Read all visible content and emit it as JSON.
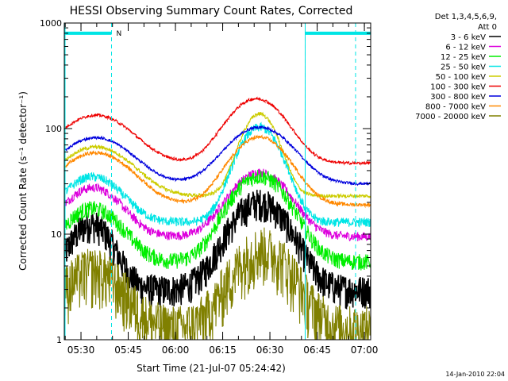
{
  "chart_data": {
    "type": "line",
    "title": "HESSI Observing Summary Count Rates, Corrected",
    "xlabel": "Start Time (21-Jul-07 05:24:42)",
    "ylabel": "Corrected Count Rate (s⁻¹ detector⁻¹)",
    "yscale": "log",
    "ylim": [
      1,
      1000
    ],
    "xlim_min": [
      0,
      97.3
    ],
    "x_unit": "minutes after 05:24:42",
    "x_ticks": [
      {
        "m": 5.3,
        "label": "05:30"
      },
      {
        "m": 20.3,
        "label": "05:45"
      },
      {
        "m": 35.3,
        "label": "06:00"
      },
      {
        "m": 50.3,
        "label": "06:15"
      },
      {
        "m": 65.3,
        "label": "06:30"
      },
      {
        "m": 80.3,
        "label": "06:45"
      },
      {
        "m": 95.3,
        "label": "07:00"
      }
    ],
    "y_ticks": [
      {
        "v": 1,
        "label": "1"
      },
      {
        "v": 10,
        "label": "10"
      },
      {
        "v": 100,
        "label": "100"
      },
      {
        "v": 1000,
        "label": "1000"
      }
    ],
    "legend": {
      "header1": "Det 1,3,4,5,6,9,",
      "header2": "Att 0",
      "placement": "right"
    },
    "night_band": {
      "label": "N",
      "start_min": 15.0,
      "end_min": 76.5,
      "level": 800
    },
    "markers_dashed_min": [
      15.0,
      76.5,
      92.5
    ],
    "series": [
      {
        "name": "3 - 6 keV",
        "color": "#000000",
        "base": 3.0,
        "f1": 9.5,
        "c1": 8.5,
        "w1": 6,
        "f2": 17,
        "c2": 62,
        "w2": 8,
        "noise": 0.35
      },
      {
        "name": "6 - 12 keV",
        "color": "#dd00dd",
        "base": 9.5,
        "f1": 18,
        "c1": 9,
        "w1": 8,
        "f2": 29,
        "c2": 62,
        "w2": 8,
        "noise": 0.1
      },
      {
        "name": "12 - 25 keV",
        "color": "#00ee00",
        "base": 5.5,
        "f1": 12,
        "c1": 9,
        "w1": 8,
        "f2": 30,
        "c2": 62,
        "w2": 8,
        "noise": 0.18
      },
      {
        "name": "25 - 50 keV",
        "color": "#00e5e5",
        "base": 13,
        "f1": 22,
        "c1": 9,
        "w1": 8,
        "f2": 90,
        "c2": 62,
        "w2": 6,
        "noise": 0.1
      },
      {
        "name": "50 - 100 keV",
        "color": "#cccc00",
        "base": 23,
        "f1": 44,
        "c1": 10,
        "w1": 10,
        "f2": 115,
        "c2": 62,
        "w2": 5,
        "noise": 0.04
      },
      {
        "name": "100 - 300 keV",
        "color": "#ee0000",
        "base": 47,
        "f1": 87,
        "c1": 10,
        "w1": 10,
        "f2": 145,
        "c2": 61,
        "w2": 8,
        "noise": 0.03
      },
      {
        "name": "300 - 800 keV",
        "color": "#0000dd",
        "base": 30,
        "f1": 52,
        "c1": 10,
        "w1": 10,
        "f2": 73,
        "c2": 62,
        "w2": 9,
        "noise": 0.03
      },
      {
        "name": "800 - 7000 keV",
        "color": "#ff8800",
        "base": 19,
        "f1": 40,
        "c1": 10,
        "w1": 10,
        "f2": 64,
        "c2": 62,
        "w2": 8,
        "noise": 0.04
      },
      {
        "name": "7000 - 20000 keV",
        "color": "#808000",
        "base": 1.3,
        "f1": 3.3,
        "c1": 9,
        "w1": 8,
        "f2": 6.0,
        "c2": 63,
        "w2": 8,
        "noise": 0.6
      }
    ]
  },
  "footer": {
    "timestamp": "14-Jan-2010 22:04"
  }
}
